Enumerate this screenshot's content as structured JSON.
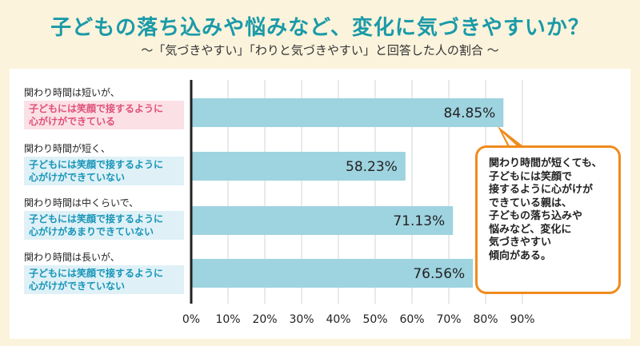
{
  "title": "子どもの落ち込みや悩みなど、変化に気づきやすいか？",
  "subtitle": "〜「気づきやすい」「わりと気づきやすい」と回答した人の割合 〜",
  "rows": [
    {
      "line1": "関わり時間は短いが、",
      "box_l1": "子どもには笑顔で接するように",
      "box_l2": "心がけができている",
      "tone": "pink"
    },
    {
      "line1": "関わり時間が短く、",
      "box_l1": "子どもには笑顔で接するように",
      "box_l2": "心がけができていない",
      "tone": "blue"
    },
    {
      "line1": "関わり時間は中くらいで、",
      "box_l1": "子どもには笑顔で接するように",
      "box_l2": "心がけがあまりできていない",
      "tone": "blue"
    },
    {
      "line1": "関わり時間は長いが、",
      "box_l1": "子どもには笑顔で接するように",
      "box_l2": "心がけができていない",
      "tone": "blue"
    }
  ],
  "callout": {
    "lines": [
      "関わり時間が短くても、",
      "子どもには笑顔で",
      "接するように心がけが",
      "できている親は、",
      "子どもの落ち込みや",
      "悩みなど、変化に",
      "気づきやすい",
      "傾向がある。"
    ]
  },
  "colors": {
    "bar": "#9ed3e0",
    "accent": "#1a9aa8",
    "callout_border": "#ef8b1d"
  },
  "chart_data": {
    "type": "bar",
    "orientation": "horizontal",
    "categories": [
      "関わり時間は短いが、子どもには笑顔で接するように心がけができている",
      "関わり時間が短く、子どもには笑顔で接するように心がけができていない",
      "関わり時間は中くらいで、子どもには笑顔で接するように心がけがあまりできていない",
      "関わり時間は長いが、子どもには笑顔で接するように心がけができていない"
    ],
    "values": [
      84.85,
      58.23,
      71.13,
      76.56
    ],
    "value_labels": [
      "84.85%",
      "58.23%",
      "71.13%",
      "76.56%"
    ],
    "xlim": [
      0,
      90
    ],
    "ticks": [
      "0%",
      "10%",
      "20%",
      "30%",
      "40%",
      "50%",
      "60%",
      "70%",
      "80%",
      "90%"
    ],
    "grid": true
  }
}
